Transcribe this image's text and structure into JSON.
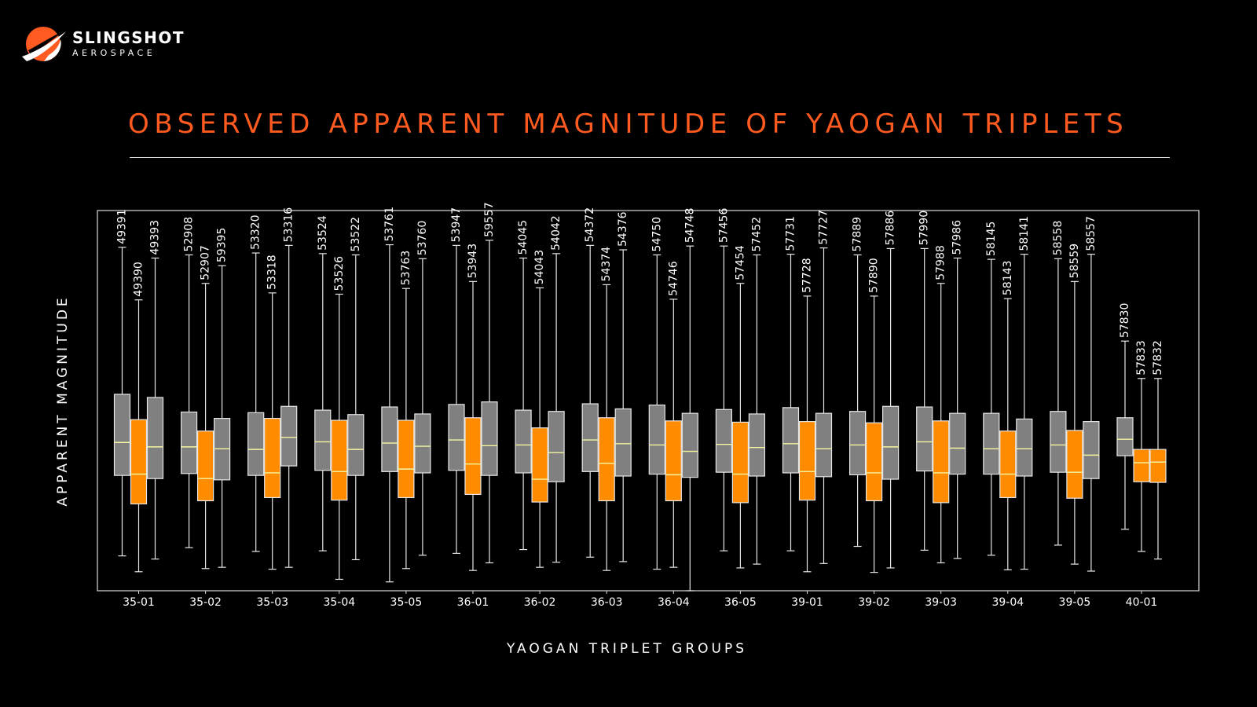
{
  "logo": {
    "line1": "SLINGSHOT",
    "line2": "AEROSPACE",
    "icon": "slingshot-swoosh-icon"
  },
  "title": "OBSERVED APPARENT MAGNITUDE OF YAOGAN TRIPLETS",
  "colors": {
    "accent": "#ff5a1f",
    "box_gray": "#808080",
    "box_orange": "#ff8c00",
    "median": "#f5f5a0",
    "background": "#000000"
  },
  "chart_data": {
    "type": "boxplot",
    "xlabel": "YAOGAN TRIPLET GROUPS",
    "ylabel": "APPARENT MAGNITUDE",
    "y_axis_ticks_shown": false,
    "grid": false,
    "groups": [
      {
        "name": "35-01",
        "boxes": [
          {
            "id": "49391",
            "color": "gray",
            "min": 2.35,
            "q1": 3.62,
            "median": 4.14,
            "q3": 4.9,
            "max": 7.22
          },
          {
            "id": "49390",
            "color": "orange",
            "min": 2.1,
            "q1": 3.17,
            "median": 3.64,
            "q3": 4.5,
            "max": 6.39
          },
          {
            "id": "49393",
            "color": "gray",
            "min": 2.3,
            "q1": 3.57,
            "median": 4.07,
            "q3": 4.85,
            "max": 7.05
          }
        ]
      },
      {
        "name": "35-02",
        "boxes": [
          {
            "id": "52908",
            "color": "gray",
            "min": 2.48,
            "q1": 3.65,
            "median": 4.07,
            "q3": 4.62,
            "max": 7.1
          },
          {
            "id": "52907",
            "color": "orange",
            "min": 2.15,
            "q1": 3.22,
            "median": 3.57,
            "q3": 4.32,
            "max": 6.65
          },
          {
            "id": "59395",
            "color": "gray",
            "min": 2.17,
            "q1": 3.55,
            "median": 4.04,
            "q3": 4.52,
            "max": 6.93
          }
        ]
      },
      {
        "name": "35-03",
        "boxes": [
          {
            "id": "53320",
            "color": "gray",
            "min": 2.42,
            "q1": 3.62,
            "median": 4.03,
            "q3": 4.61,
            "max": 7.13
          },
          {
            "id": "53318",
            "color": "orange",
            "min": 2.14,
            "q1": 3.27,
            "median": 3.66,
            "q3": 4.52,
            "max": 6.5
          },
          {
            "id": "53316",
            "color": "gray",
            "min": 2.17,
            "q1": 3.77,
            "median": 4.22,
            "q3": 4.71,
            "max": 7.25
          }
        ]
      },
      {
        "name": "35-04",
        "boxes": [
          {
            "id": "53524",
            "color": "gray",
            "min": 2.43,
            "q1": 3.7,
            "median": 4.15,
            "q3": 4.65,
            "max": 7.12
          },
          {
            "id": "53526",
            "color": "orange",
            "min": 1.98,
            "q1": 3.23,
            "median": 3.68,
            "q3": 4.49,
            "max": 6.48
          },
          {
            "id": "53522",
            "color": "gray",
            "min": 2.29,
            "q1": 3.62,
            "median": 4.03,
            "q3": 4.58,
            "max": 7.1
          }
        ]
      },
      {
        "name": "35-05",
        "boxes": [
          {
            "id": "53761",
            "color": "gray",
            "min": 1.94,
            "q1": 3.68,
            "median": 4.13,
            "q3": 4.7,
            "max": 7.26
          },
          {
            "id": "53763",
            "color": "orange",
            "min": 2.15,
            "q1": 3.27,
            "median": 3.72,
            "q3": 4.49,
            "max": 6.57
          },
          {
            "id": "53760",
            "color": "gray",
            "min": 2.36,
            "q1": 3.66,
            "median": 4.08,
            "q3": 4.59,
            "max": 7.04
          }
        ]
      },
      {
        "name": "36-01",
        "boxes": [
          {
            "id": "53947",
            "color": "gray",
            "min": 2.39,
            "q1": 3.7,
            "median": 4.18,
            "q3": 4.74,
            "max": 7.25
          },
          {
            "id": "53943",
            "color": "orange",
            "min": 2.12,
            "q1": 3.32,
            "median": 3.8,
            "q3": 4.53,
            "max": 6.68
          },
          {
            "id": "59557",
            "color": "gray",
            "min": 2.24,
            "q1": 3.62,
            "median": 4.09,
            "q3": 4.78,
            "max": 7.33
          }
        ]
      },
      {
        "name": "36-02",
        "boxes": [
          {
            "id": "54045",
            "color": "gray",
            "min": 2.45,
            "q1": 3.66,
            "median": 4.1,
            "q3": 4.65,
            "max": 7.05
          },
          {
            "id": "54043",
            "color": "orange",
            "min": 2.17,
            "q1": 3.2,
            "median": 3.56,
            "q3": 4.37,
            "max": 6.58
          },
          {
            "id": "54042",
            "color": "gray",
            "min": 2.25,
            "q1": 3.52,
            "median": 3.98,
            "q3": 4.63,
            "max": 7.12
          }
        ]
      },
      {
        "name": "36-03",
        "boxes": [
          {
            "id": "54372",
            "color": "gray",
            "min": 2.33,
            "q1": 3.68,
            "median": 4.18,
            "q3": 4.75,
            "max": 7.25
          },
          {
            "id": "54374",
            "color": "orange",
            "min": 2.12,
            "q1": 3.22,
            "median": 3.81,
            "q3": 4.53,
            "max": 6.63
          },
          {
            "id": "54376",
            "color": "gray",
            "min": 2.26,
            "q1": 3.61,
            "median": 4.12,
            "q3": 4.67,
            "max": 7.18
          }
        ]
      },
      {
        "name": "36-04",
        "boxes": [
          {
            "id": "54750",
            "color": "gray",
            "min": 2.14,
            "q1": 3.64,
            "median": 4.1,
            "q3": 4.73,
            "max": 7.1
          },
          {
            "id": "54746",
            "color": "orange",
            "min": 2.17,
            "q1": 3.22,
            "median": 3.63,
            "q3": 4.48,
            "max": 6.4
          },
          {
            "id": "54748",
            "color": "gray",
            "min": 1.8,
            "q1": 3.59,
            "median": 4.0,
            "q3": 4.6,
            "max": 7.24
          }
        ]
      },
      {
        "name": "36-05",
        "boxes": [
          {
            "id": "57456",
            "color": "gray",
            "min": 2.43,
            "q1": 3.67,
            "median": 4.11,
            "q3": 4.66,
            "max": 7.24
          },
          {
            "id": "57454",
            "color": "orange",
            "min": 2.16,
            "q1": 3.19,
            "median": 3.64,
            "q3": 4.46,
            "max": 6.65
          },
          {
            "id": "57452",
            "color": "gray",
            "min": 2.22,
            "q1": 3.61,
            "median": 4.06,
            "q3": 4.59,
            "max": 7.1
          }
        ]
      },
      {
        "name": "39-01",
        "boxes": [
          {
            "id": "57731",
            "color": "gray",
            "min": 2.43,
            "q1": 3.66,
            "median": 4.12,
            "q3": 4.69,
            "max": 7.11
          },
          {
            "id": "57728",
            "color": "orange",
            "min": 2.1,
            "q1": 3.23,
            "median": 3.68,
            "q3": 4.47,
            "max": 6.45
          },
          {
            "id": "57727",
            "color": "gray",
            "min": 2.23,
            "q1": 3.6,
            "median": 4.04,
            "q3": 4.6,
            "max": 7.21
          }
        ]
      },
      {
        "name": "39-02",
        "boxes": [
          {
            "id": "57889",
            "color": "gray",
            "min": 2.5,
            "q1": 3.63,
            "median": 4.1,
            "q3": 4.63,
            "max": 7.1
          },
          {
            "id": "57890",
            "color": "orange",
            "min": 2.09,
            "q1": 3.22,
            "median": 3.66,
            "q3": 4.45,
            "max": 6.45
          },
          {
            "id": "57886",
            "color": "gray",
            "min": 2.16,
            "q1": 3.56,
            "median": 4.07,
            "q3": 4.71,
            "max": 7.2
          }
        ]
      },
      {
        "name": "39-03",
        "boxes": [
          {
            "id": "57990",
            "color": "gray",
            "min": 2.44,
            "q1": 3.69,
            "median": 4.15,
            "q3": 4.7,
            "max": 7.2
          },
          {
            "id": "57988",
            "color": "orange",
            "min": 2.24,
            "q1": 3.19,
            "median": 3.66,
            "q3": 4.48,
            "max": 6.65
          },
          {
            "id": "57986",
            "color": "gray",
            "min": 2.31,
            "q1": 3.64,
            "median": 4.05,
            "q3": 4.6,
            "max": 7.05
          }
        ]
      },
      {
        "name": "39-04",
        "boxes": [
          {
            "id": "58145",
            "color": "gray",
            "min": 2.36,
            "q1": 3.64,
            "median": 4.04,
            "q3": 4.6,
            "max": 7.03
          },
          {
            "id": "58143",
            "color": "orange",
            "min": 2.13,
            "q1": 3.27,
            "median": 3.64,
            "q3": 4.32,
            "max": 6.41
          },
          {
            "id": "58141",
            "color": "gray",
            "min": 2.14,
            "q1": 3.61,
            "median": 4.04,
            "q3": 4.51,
            "max": 7.11
          }
        ]
      },
      {
        "name": "39-05",
        "boxes": [
          {
            "id": "58558",
            "color": "gray",
            "min": 2.52,
            "q1": 3.67,
            "median": 4.1,
            "q3": 4.63,
            "max": 7.04
          },
          {
            "id": "58559",
            "color": "orange",
            "min": 2.22,
            "q1": 3.26,
            "median": 3.67,
            "q3": 4.33,
            "max": 6.68
          },
          {
            "id": "58557",
            "color": "gray",
            "min": 2.11,
            "q1": 3.57,
            "median": 3.94,
            "q3": 4.47,
            "max": 7.11
          }
        ]
      },
      {
        "name": "40-01",
        "boxes": [
          {
            "id": "57830",
            "color": "gray",
            "min": 2.77,
            "q1": 3.93,
            "median": 4.19,
            "q3": 4.53,
            "max": 5.74
          },
          {
            "id": "57833",
            "color": "orange",
            "min": 2.42,
            "q1": 3.52,
            "median": 3.82,
            "q3": 4.03,
            "max": 5.15
          },
          {
            "id": "57832",
            "color": "orange",
            "min": 2.3,
            "q1": 3.51,
            "median": 3.83,
            "q3": 4.03,
            "max": 5.15
          }
        ]
      }
    ]
  }
}
